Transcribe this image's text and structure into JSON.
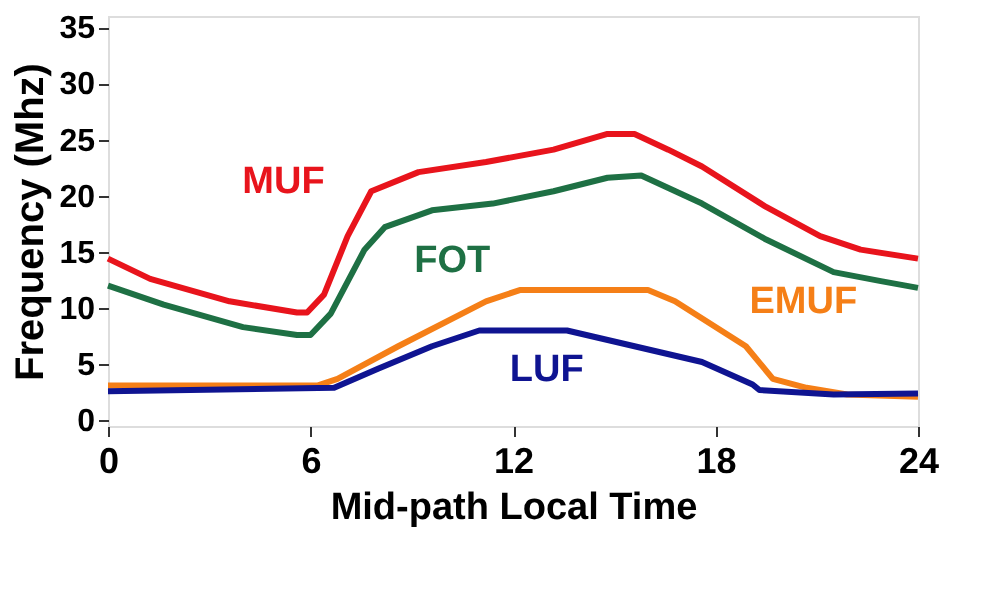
{
  "chart_data": {
    "type": "line",
    "xlabel": "Mid-path Local Time",
    "ylabel": "Frequency (Mhz)",
    "xlim": [
      0,
      24
    ],
    "xticks": [
      0,
      6,
      12,
      18,
      24
    ],
    "ylim": [
      -0.5,
      36
    ],
    "yticks": [
      0,
      5,
      10,
      15,
      20,
      25,
      30,
      35
    ],
    "grid": false,
    "legend": false,
    "marker": "none",
    "line_style": "solid",
    "series": [
      {
        "name": "MUF",
        "color": "#e8141c",
        "x": [
          0,
          1.25,
          3.6,
          5.6,
          5.9,
          6.4,
          7.1,
          7.8,
          9.2,
          11.2,
          13.2,
          14.8,
          15.6,
          16.6,
          17.6,
          19.5,
          21.1,
          22.3,
          24
        ],
        "values": [
          14.4,
          12.6,
          10.6,
          9.6,
          9.6,
          11.2,
          16.4,
          20.4,
          22.1,
          23,
          24.1,
          25.5,
          25.5,
          24.1,
          22.6,
          19,
          16.4,
          15.2,
          14.4
        ]
      },
      {
        "name": "FOT",
        "color": "#1e7044",
        "x": [
          0,
          1.65,
          4,
          5.6,
          6,
          6.6,
          7.6,
          8.2,
          9.6,
          11.4,
          13.2,
          14.8,
          15.8,
          17.6,
          19.5,
          21.5,
          22.9,
          24
        ],
        "values": [
          12,
          10.3,
          8.3,
          7.6,
          7.6,
          9.5,
          15.2,
          17.2,
          18.7,
          19.3,
          20.4,
          21.6,
          21.8,
          19.3,
          16.1,
          13.2,
          12.4,
          11.8
        ]
      },
      {
        "name": "EMUF",
        "color": "#f57f17",
        "x": [
          0,
          6.2,
          6.8,
          8.6,
          11.2,
          12.2,
          16,
          16.8,
          18.9,
          19.7,
          20.7,
          21.9,
          24
        ],
        "values": [
          3.1,
          3.1,
          3.7,
          6.6,
          10.6,
          11.6,
          11.6,
          10.6,
          6.6,
          3.7,
          2.9,
          2.3,
          2.1
        ]
      },
      {
        "name": "LUF",
        "color": "#0f1491",
        "x": [
          0,
          6.7,
          8,
          9.6,
          11,
          13.6,
          15.6,
          17.6,
          19.1,
          19.3,
          21.5,
          24
        ],
        "values": [
          2.6,
          2.9,
          4.6,
          6.6,
          8,
          8,
          6.6,
          5.2,
          3.2,
          2.7,
          2.3,
          2.4
        ]
      }
    ]
  }
}
